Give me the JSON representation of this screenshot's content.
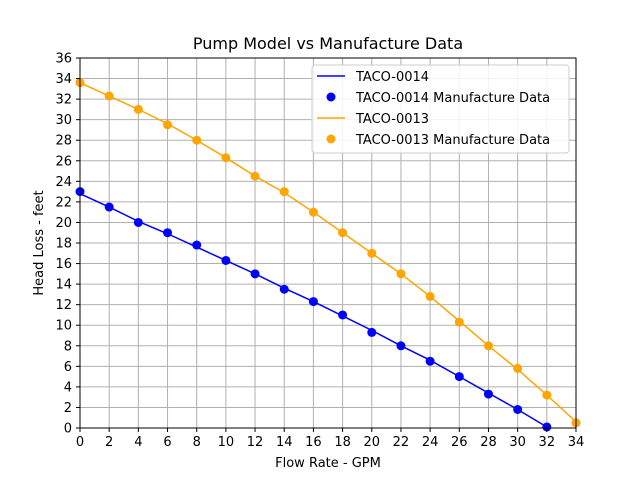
{
  "chart_data": {
    "type": "line",
    "title": "Pump Model vs Manufacture Data",
    "xlabel": "Flow Rate - GPM",
    "ylabel": "Head Loss - feet",
    "xlim": [
      0,
      34
    ],
    "ylim": [
      0,
      36
    ],
    "xticks": [
      0,
      2,
      4,
      6,
      8,
      10,
      12,
      14,
      16,
      18,
      20,
      22,
      24,
      26,
      28,
      30,
      32,
      34
    ],
    "yticks": [
      0,
      2,
      4,
      6,
      8,
      10,
      12,
      14,
      16,
      18,
      20,
      22,
      24,
      26,
      28,
      30,
      32,
      34,
      36
    ],
    "grid": true,
    "legend_position": "upper right",
    "series": [
      {
        "name": "TACO-0014",
        "kind": "line",
        "color": "#0000ff",
        "x": [
          0,
          2,
          4,
          6,
          8,
          10,
          12,
          14,
          16,
          18,
          20,
          22,
          24,
          26,
          28,
          30,
          32
        ],
        "y": [
          22.8,
          21.5,
          20.1,
          18.9,
          17.6,
          16.3,
          15.0,
          13.6,
          12.3,
          10.9,
          9.5,
          8.0,
          6.6,
          5.0,
          3.4,
          1.8,
          0.1
        ]
      },
      {
        "name": "TACO-0014 Manufacture Data",
        "kind": "scatter",
        "color": "#0000ff",
        "x": [
          0,
          2,
          4,
          6,
          8,
          10,
          12,
          14,
          16,
          18,
          20,
          22,
          24,
          26,
          28,
          30,
          32
        ],
        "y": [
          23.0,
          21.5,
          20.0,
          19.0,
          17.8,
          16.3,
          15.0,
          13.5,
          12.3,
          11.0,
          9.3,
          8.0,
          6.5,
          5.0,
          3.3,
          1.8,
          0.1
        ]
      },
      {
        "name": "TACO-0013",
        "kind": "line",
        "color": "#ffa500",
        "x": [
          0,
          2,
          4,
          6,
          8,
          10,
          12,
          14,
          16,
          18,
          20,
          22,
          24,
          26,
          28,
          30,
          32,
          34
        ],
        "y": [
          33.6,
          32.3,
          31.0,
          29.6,
          28.0,
          26.3,
          24.5,
          22.9,
          21.0,
          19.0,
          17.0,
          15.0,
          12.8,
          10.4,
          8.0,
          5.7,
          3.2,
          0.6
        ]
      },
      {
        "name": "TACO-0013 Manufacture Data",
        "kind": "scatter",
        "color": "#ffa500",
        "x": [
          0,
          2,
          4,
          6,
          8,
          10,
          12,
          14,
          16,
          18,
          20,
          22,
          24,
          26,
          28,
          30,
          32,
          34
        ],
        "y": [
          33.6,
          32.3,
          31.0,
          29.5,
          28.0,
          26.3,
          24.5,
          23.0,
          21.0,
          19.0,
          17.0,
          15.0,
          12.8,
          10.3,
          8.0,
          5.8,
          3.2,
          0.5
        ]
      }
    ]
  }
}
